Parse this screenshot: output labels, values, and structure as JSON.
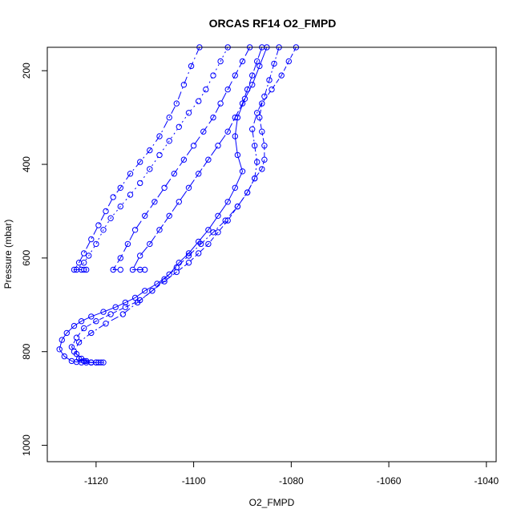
{
  "chart_data": {
    "type": "scatter",
    "title": "ORCAS RF14 O2_FMPD",
    "xlabel": "O2_FMPD",
    "ylabel": "Pressure (mbar)",
    "xlim": [
      -1130,
      -1038
    ],
    "ylim": [
      1035,
      150
    ],
    "y_reversed": true,
    "xticks": [
      -1120,
      -1100,
      -1080,
      -1060,
      -1040
    ],
    "yticks": [
      200,
      400,
      600,
      800,
      1000
    ],
    "grid": false,
    "line_color": "#0000ff",
    "series": [
      {
        "dash": "10,4,2,4",
        "x": [
          -1098.8,
          -1100.5,
          -1102,
          -1103.5,
          -1105,
          -1107,
          -1109,
          -1111,
          -1113,
          -1115,
          -1116.5,
          -1118,
          -1119.5,
          -1121,
          -1122.5,
          -1123.5,
          -1124.5,
          -1122.5
        ],
        "y": [
          150,
          190,
          230,
          270,
          300,
          340,
          370,
          395,
          420,
          450,
          470,
          500,
          530,
          560,
          590,
          610,
          625,
          625
        ]
      },
      {
        "dash": "2,4",
        "x": [
          -1093,
          -1094.5,
          -1096,
          -1097.5,
          -1099,
          -1101,
          -1103,
          -1105,
          -1107,
          -1109,
          -1111,
          -1113,
          -1115,
          -1117,
          -1118.5,
          -1120,
          -1121.5,
          -1122.5,
          -1124,
          -1123,
          -1122
        ],
        "y": [
          150,
          180,
          210,
          240,
          265,
          290,
          320,
          350,
          380,
          410,
          440,
          465,
          490,
          515,
          540,
          570,
          595,
          610,
          625,
          625,
          625
        ]
      },
      {
        "dash": "12,4",
        "x": [
          -1088.5,
          -1090,
          -1091.5,
          -1093,
          -1094.5,
          -1096,
          -1098,
          -1100,
          -1102,
          -1104,
          -1106,
          -1108,
          -1110,
          -1112,
          -1113.5,
          -1115,
          -1116.5,
          -1115
        ],
        "y": [
          150,
          180,
          210,
          240,
          270,
          300,
          330,
          360,
          390,
          420,
          450,
          480,
          510,
          540,
          570,
          600,
          625,
          625
        ]
      },
      {
        "dash": "14,3",
        "x": [
          -1086,
          -1087,
          -1088,
          -1089,
          -1090,
          -1091.5,
          -1093,
          -1095,
          -1097,
          -1099,
          -1101,
          -1103,
          -1105,
          -1107,
          -1109,
          -1111,
          -1112.5,
          -1111,
          -1110
        ],
        "y": [
          150,
          180,
          210,
          240,
          270,
          300,
          330,
          360,
          390,
          420,
          450,
          480,
          510,
          540,
          570,
          595,
          625,
          625,
          625
        ]
      },
      {
        "dash": "",
        "x": [
          -1085,
          -1086.5,
          -1088,
          -1089.5,
          -1091,
          -1091.5,
          -1091,
          -1090,
          -1091.5,
          -1093,
          -1095,
          -1097,
          -1099,
          -1101,
          -1103,
          -1105,
          -1107.5,
          -1110,
          -1112,
          -1114,
          -1116,
          -1118.5,
          -1121,
          -1123,
          -1124.5,
          -1126,
          -1127,
          -1127.5,
          -1126.5,
          -1125,
          -1124,
          -1123,
          -1122,
          -1121,
          -1120,
          -1119
        ],
        "y": [
          150,
          190,
          230,
          260,
          300,
          340,
          380,
          415,
          450,
          480,
          510,
          540,
          565,
          590,
          610,
          635,
          655,
          670,
          685,
          695,
          705,
          715,
          725,
          735,
          745,
          760,
          775,
          795,
          810,
          820,
          822,
          823,
          823,
          823,
          823,
          823
        ]
      },
      {
        "dash": "6,3",
        "x": [
          -1079,
          -1080.5,
          -1082,
          -1084,
          -1086,
          -1086.5,
          -1086,
          -1085.5,
          -1085.5,
          -1086,
          -1087.5,
          -1089,
          -1091,
          -1093,
          -1095,
          -1097,
          -1099,
          -1101,
          -1103.5,
          -1106,
          -1108.5,
          -1111,
          -1114,
          -1117,
          -1120,
          -1122.5,
          -1124,
          -1125,
          -1124,
          -1123.5,
          -1122.5,
          -1121,
          -1119.5,
          -1118.5
        ],
        "y": [
          150,
          180,
          210,
          240,
          270,
          300,
          330,
          360,
          390,
          410,
          430,
          460,
          490,
          520,
          545,
          570,
          590,
          610,
          630,
          650,
          670,
          690,
          705,
          720,
          735,
          750,
          770,
          790,
          805,
          815,
          820,
          823,
          823,
          823
        ]
      },
      {
        "dash": "10,3,2,3",
        "x": [
          -1082.5,
          -1083.5,
          -1084.5,
          -1085.5,
          -1087,
          -1088,
          -1087.5,
          -1087,
          -1087.5,
          -1089,
          -1091,
          -1093.5,
          -1096,
          -1098.5,
          -1101,
          -1103.5,
          -1106,
          -1108.5,
          -1111.5,
          -1114.5,
          -1118,
          -1121,
          -1123.5,
          -1124.5,
          -1123,
          -1122,
          -1121,
          -1120
        ],
        "y": [
          150,
          185,
          220,
          255,
          290,
          325,
          360,
          395,
          430,
          460,
          490,
          520,
          545,
          570,
          595,
          620,
          645,
          670,
          695,
          720,
          740,
          760,
          780,
          800,
          815,
          820,
          823,
          823
        ]
      }
    ]
  }
}
